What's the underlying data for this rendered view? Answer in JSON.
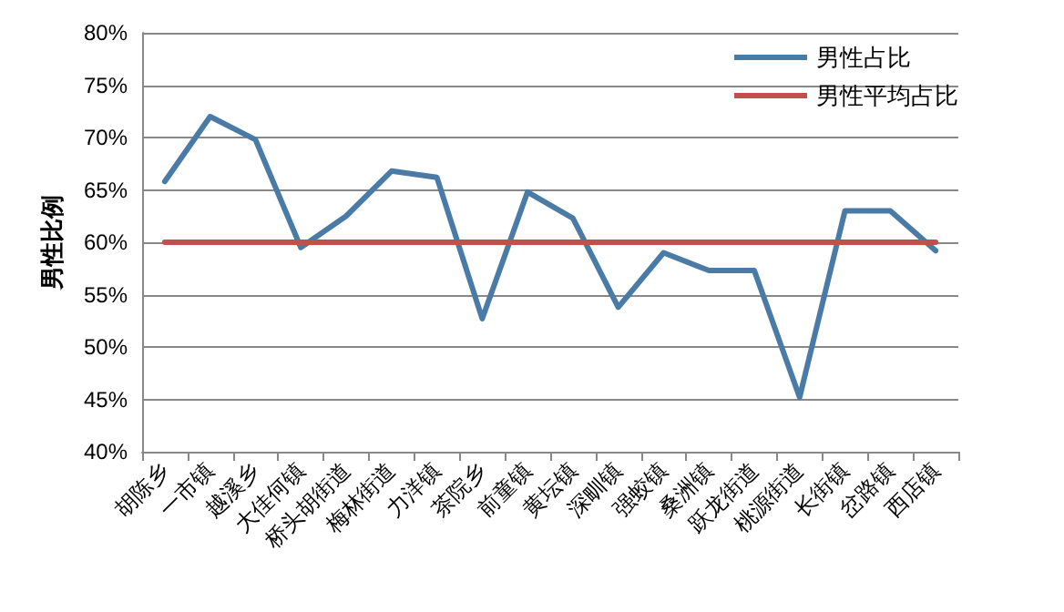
{
  "chart_data": {
    "type": "line",
    "ylabel": "男性比例",
    "categories": [
      "胡陈乡",
      "一市镇",
      "越溪乡",
      "大佳何镇",
      "桥头胡街道",
      "梅林街道",
      "力洋镇",
      "茶院乡",
      "前童镇",
      "黄坛镇",
      "深甽镇",
      "强蛟镇",
      "桑洲镇",
      "跃龙街道",
      "桃源街道",
      "长街镇",
      "岔路镇",
      "西店镇"
    ],
    "series": [
      {
        "name": "男性占比",
        "color": "#4a7ba7",
        "values": [
          65.8,
          72,
          69.8,
          59.5,
          62.5,
          66.8,
          66.2,
          52.7,
          64.8,
          62.3,
          53.8,
          59,
          57.3,
          57.3,
          45.2,
          63,
          63,
          59.2
        ]
      },
      {
        "name": "男性平均占比",
        "color": "#c0504d",
        "values": [
          60,
          60,
          60,
          60,
          60,
          60,
          60,
          60,
          60,
          60,
          60,
          60,
          60,
          60,
          60,
          60,
          60,
          60
        ]
      }
    ],
    "ylim": [
      40,
      80
    ],
    "yticks": [
      {
        "value": 40,
        "label": "40%"
      },
      {
        "value": 45,
        "label": "45%"
      },
      {
        "value": 50,
        "label": "50%"
      },
      {
        "value": 55,
        "label": "55%"
      },
      {
        "value": 60,
        "label": "60%"
      },
      {
        "value": 65,
        "label": "65%"
      },
      {
        "value": 70,
        "label": "70%"
      },
      {
        "value": 75,
        "label": "75%"
      },
      {
        "value": 80,
        "label": "80%"
      }
    ],
    "grid": "y",
    "legend": "top right",
    "marker": "none",
    "line_style": "solid"
  }
}
